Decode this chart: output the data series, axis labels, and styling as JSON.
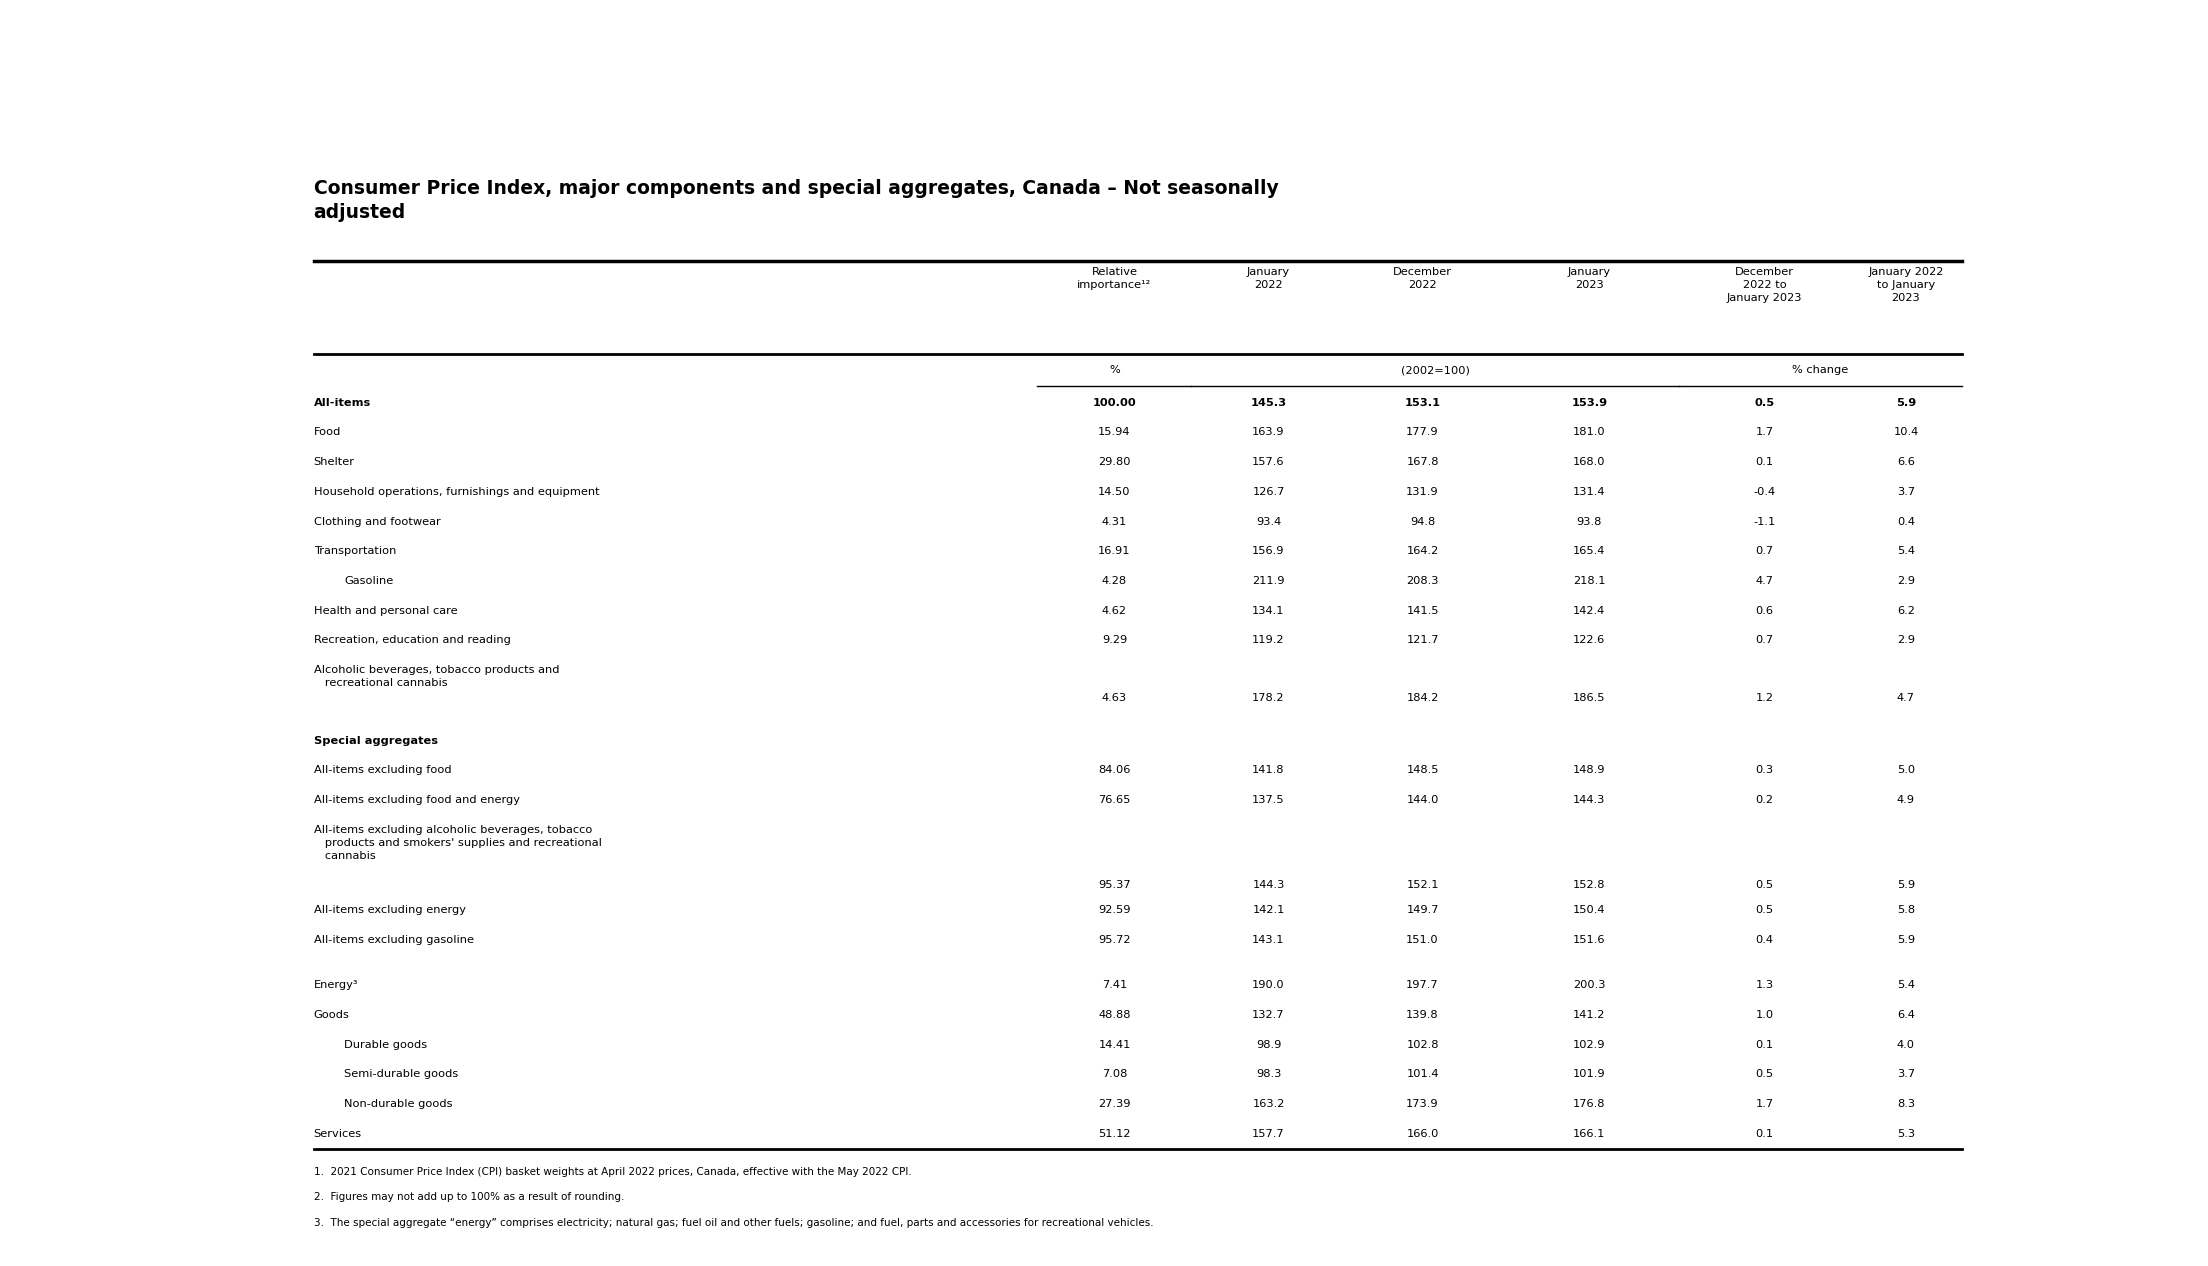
{
  "title": "Consumer Price Index, major components and special aggregates, Canada – Not seasonally\nadjusted",
  "col_headers": [
    "Relative\nimportance¹²",
    "January\n2022",
    "December\n2022",
    "January\n2023",
    "December\n2022 to\nJanuary 2023",
    "January 2022\nto January\n2023"
  ],
  "rows": [
    {
      "label": "All-items",
      "bold": true,
      "indent": 0,
      "values": [
        "100.00",
        "145.3",
        "153.1",
        "153.9",
        "0.5",
        "5.9"
      ]
    },
    {
      "label": "Food",
      "bold": false,
      "indent": 0,
      "values": [
        "15.94",
        "163.9",
        "177.9",
        "181.0",
        "1.7",
        "10.4"
      ]
    },
    {
      "label": "Shelter",
      "bold": false,
      "indent": 0,
      "values": [
        "29.80",
        "157.6",
        "167.8",
        "168.0",
        "0.1",
        "6.6"
      ]
    },
    {
      "label": "Household operations, furnishings and equipment",
      "bold": false,
      "indent": 0,
      "values": [
        "14.50",
        "126.7",
        "131.9",
        "131.4",
        "-0.4",
        "3.7"
      ]
    },
    {
      "label": "Clothing and footwear",
      "bold": false,
      "indent": 0,
      "values": [
        "4.31",
        "93.4",
        "94.8",
        "93.8",
        "-1.1",
        "0.4"
      ]
    },
    {
      "label": "Transportation",
      "bold": false,
      "indent": 0,
      "values": [
        "16.91",
        "156.9",
        "164.2",
        "165.4",
        "0.7",
        "5.4"
      ]
    },
    {
      "label": "Gasoline",
      "bold": false,
      "indent": 1,
      "values": [
        "4.28",
        "211.9",
        "208.3",
        "218.1",
        "4.7",
        "2.9"
      ]
    },
    {
      "label": "Health and personal care",
      "bold": false,
      "indent": 0,
      "values": [
        "4.62",
        "134.1",
        "141.5",
        "142.4",
        "0.6",
        "6.2"
      ]
    },
    {
      "label": "Recreation, education and reading",
      "bold": false,
      "indent": 0,
      "values": [
        "9.29",
        "119.2",
        "121.7",
        "122.6",
        "0.7",
        "2.9"
      ]
    },
    {
      "label": "Alcoholic beverages, tobacco products and\n   recreational cannabis",
      "bold": false,
      "indent": 0,
      "multiline": true,
      "values": [
        "4.63",
        "178.2",
        "184.2",
        "186.5",
        "1.2",
        "4.7"
      ]
    },
    {
      "label": "",
      "bold": false,
      "indent": 0,
      "spacer": true,
      "values": [
        "",
        "",
        "",
        "",
        "",
        ""
      ]
    },
    {
      "label": "Special aggregates",
      "bold": true,
      "indent": 0,
      "values": [
        "",
        "",
        "",
        "",
        "",
        ""
      ]
    },
    {
      "label": "All-items excluding food",
      "bold": false,
      "indent": 0,
      "values": [
        "84.06",
        "141.8",
        "148.5",
        "148.9",
        "0.3",
        "5.0"
      ]
    },
    {
      "label": "All-items excluding food and energy",
      "bold": false,
      "indent": 0,
      "values": [
        "76.65",
        "137.5",
        "144.0",
        "144.3",
        "0.2",
        "4.9"
      ]
    },
    {
      "label": "All-items excluding alcoholic beverages, tobacco\n   products and smokers' supplies and recreational\n   cannabis",
      "bold": false,
      "indent": 0,
      "multiline": true,
      "values": [
        "95.37",
        "144.3",
        "152.1",
        "152.8",
        "0.5",
        "5.9"
      ]
    },
    {
      "label": "All-items excluding energy",
      "bold": false,
      "indent": 0,
      "values": [
        "92.59",
        "142.1",
        "149.7",
        "150.4",
        "0.5",
        "5.8"
      ]
    },
    {
      "label": "All-items excluding gasoline",
      "bold": false,
      "indent": 0,
      "values": [
        "95.72",
        "143.1",
        "151.0",
        "151.6",
        "0.4",
        "5.9"
      ]
    },
    {
      "label": "",
      "bold": false,
      "indent": 0,
      "spacer": true,
      "values": [
        "",
        "",
        "",
        "",
        "",
        ""
      ]
    },
    {
      "label": "Energy³",
      "bold": false,
      "indent": 0,
      "values": [
        "7.41",
        "190.0",
        "197.7",
        "200.3",
        "1.3",
        "5.4"
      ]
    },
    {
      "label": "Goods",
      "bold": false,
      "indent": 0,
      "values": [
        "48.88",
        "132.7",
        "139.8",
        "141.2",
        "1.0",
        "6.4"
      ]
    },
    {
      "label": "Durable goods",
      "bold": false,
      "indent": 1,
      "values": [
        "14.41",
        "98.9",
        "102.8",
        "102.9",
        "0.1",
        "4.0"
      ]
    },
    {
      "label": "Semi-durable goods",
      "bold": false,
      "indent": 1,
      "values": [
        "7.08",
        "98.3",
        "101.4",
        "101.9",
        "0.5",
        "3.7"
      ]
    },
    {
      "label": "Non-durable goods",
      "bold": false,
      "indent": 1,
      "values": [
        "27.39",
        "163.2",
        "173.9",
        "176.8",
        "1.7",
        "8.3"
      ]
    },
    {
      "label": "Services",
      "bold": false,
      "indent": 0,
      "values": [
        "51.12",
        "157.7",
        "166.0",
        "166.1",
        "0.1",
        "5.3"
      ]
    }
  ],
  "footnotes": [
    "1.  2021 Consumer Price Index (CPI) basket weights at April 2022 prices, Canada, effective with the May 2022 CPI.",
    "2.  Figures may not add up to 100% as a result of rounding.",
    "3.  The special aggregate “energy” comprises electricity; natural gas; fuel oil and other fuels; gasoline; and fuel, parts and accessories for recreational vehicles."
  ],
  "bg_color": "#ffffff",
  "text_color": "#000000"
}
